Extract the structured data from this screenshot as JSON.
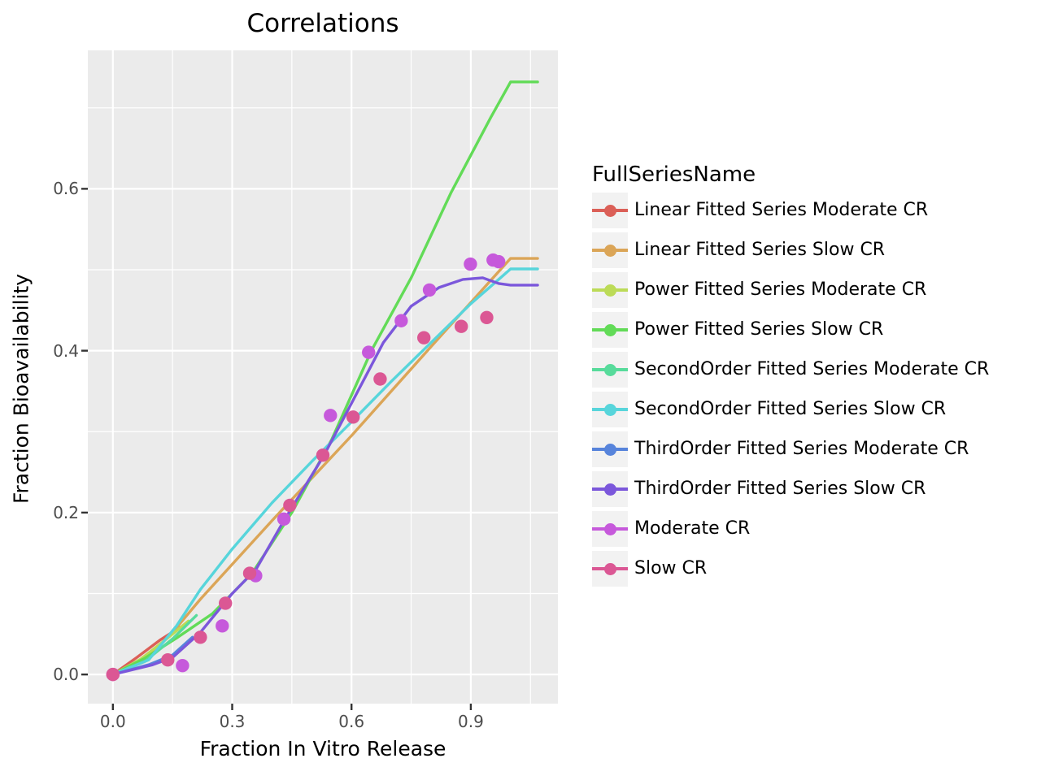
{
  "chart_data": {
    "type": "line",
    "title": "Correlations",
    "xlabel": "Fraction In Vitro Release",
    "ylabel": "Fraction Bioavailability",
    "legend_title": "FullSeriesName",
    "legend_position": "right",
    "grid": "on",
    "panel_bg": "#ebebeb",
    "grid_color": "#ffffff",
    "tick_color": "#333333",
    "tick_label_color": "#4d4d4d",
    "xlim": [
      -0.063,
      1.119
    ],
    "ylim": [
      -0.036,
      0.771
    ],
    "x_ticks": [
      0.0,
      0.3,
      0.6,
      0.9
    ],
    "x_minor_ticks": [
      0.15,
      0.45,
      0.75,
      1.05
    ],
    "y_ticks": [
      0.0,
      0.2,
      0.4,
      0.6
    ],
    "y_minor_ticks": [
      0.1,
      0.3,
      0.5,
      0.7
    ],
    "series": [
      {
        "name": "Linear Fitted Series Moderate CR",
        "color": "#db5f57",
        "type": "line",
        "points": [
          [
            0,
            0
          ],
          [
            0.06,
            0.021
          ],
          [
            0.12,
            0.043
          ],
          [
            0.168,
            0.058
          ]
        ]
      },
      {
        "name": "Linear Fitted Series Slow CR",
        "color": "#dba557",
        "type": "line",
        "points": [
          [
            0,
            0
          ],
          [
            0.08,
            0.018
          ],
          [
            0.15,
            0.052
          ],
          [
            0.22,
            0.093
          ],
          [
            0.4,
            0.19
          ],
          [
            0.6,
            0.295
          ],
          [
            0.8,
            0.405
          ],
          [
            1.0,
            0.514
          ],
          [
            1.068,
            0.514
          ]
        ]
      },
      {
        "name": "Power Fitted Series Moderate CR",
        "color": "#bcdb57",
        "type": "line",
        "points": [
          [
            0,
            0
          ],
          [
            0.07,
            0.019
          ],
          [
            0.13,
            0.042
          ],
          [
            0.19,
            0.066
          ]
        ]
      },
      {
        "name": "Power Fitted Series Slow CR",
        "color": "#62db57",
        "type": "line",
        "points": [
          [
            0,
            0
          ],
          [
            0.08,
            0.02
          ],
          [
            0.16,
            0.045
          ],
          [
            0.25,
            0.075
          ],
          [
            0.35,
            0.125
          ],
          [
            0.45,
            0.2
          ],
          [
            0.55,
            0.29
          ],
          [
            0.65,
            0.4
          ],
          [
            0.75,
            0.49
          ],
          [
            0.85,
            0.595
          ],
          [
            0.95,
            0.688
          ],
          [
            1.0,
            0.732
          ],
          [
            1.068,
            0.732
          ]
        ]
      },
      {
        "name": "SecondOrder Fitted Series Moderate CR",
        "color": "#57db9b",
        "type": "line",
        "points": [
          [
            0,
            0
          ],
          [
            0.08,
            0.016
          ],
          [
            0.15,
            0.044
          ],
          [
            0.21,
            0.073
          ]
        ]
      },
      {
        "name": "SecondOrder Fitted Series Slow CR",
        "color": "#57d5db",
        "type": "line",
        "points": [
          [
            0,
            0
          ],
          [
            0.09,
            0.018
          ],
          [
            0.16,
            0.06
          ],
          [
            0.22,
            0.105
          ],
          [
            0.3,
            0.155
          ],
          [
            0.4,
            0.212
          ],
          [
            0.5,
            0.263
          ],
          [
            0.6,
            0.312
          ],
          [
            0.7,
            0.362
          ],
          [
            0.8,
            0.41
          ],
          [
            0.9,
            0.458
          ],
          [
            0.97,
            0.488
          ],
          [
            1.0,
            0.501
          ],
          [
            1.068,
            0.501
          ]
        ]
      },
      {
        "name": "ThirdOrder Fitted Series Moderate CR",
        "color": "#5784db",
        "type": "line",
        "points": [
          [
            0,
            0
          ],
          [
            0.09,
            0.012
          ],
          [
            0.15,
            0.024
          ],
          [
            0.2,
            0.046
          ]
        ]
      },
      {
        "name": "ThirdOrder Fitted Series Slow CR",
        "color": "#7b57db",
        "type": "line",
        "points": [
          [
            0,
            0
          ],
          [
            0.1,
            0.012
          ],
          [
            0.15,
            0.021
          ],
          [
            0.22,
            0.052
          ],
          [
            0.3,
            0.1
          ],
          [
            0.36,
            0.13
          ],
          [
            0.43,
            0.19
          ],
          [
            0.53,
            0.27
          ],
          [
            0.6,
            0.335
          ],
          [
            0.68,
            0.41
          ],
          [
            0.75,
            0.455
          ],
          [
            0.82,
            0.478
          ],
          [
            0.88,
            0.488
          ],
          [
            0.93,
            0.49
          ],
          [
            0.97,
            0.483
          ],
          [
            1.0,
            0.481
          ],
          [
            1.068,
            0.481
          ]
        ]
      },
      {
        "name": "Moderate CR",
        "color": "#c659db",
        "type": "scatter",
        "points": [
          [
            0,
            0
          ],
          [
            0.175,
            0.011
          ],
          [
            0.275,
            0.06
          ],
          [
            0.359,
            0.122
          ],
          [
            0.43,
            0.192
          ],
          [
            0.547,
            0.32
          ],
          [
            0.643,
            0.398
          ],
          [
            0.725,
            0.437
          ],
          [
            0.796,
            0.475
          ],
          [
            0.899,
            0.507
          ],
          [
            0.956,
            0.512
          ],
          [
            0.97,
            0.51
          ]
        ]
      },
      {
        "name": "Slow CR",
        "color": "#db5794",
        "type": "scatter",
        "points": [
          [
            0,
            0
          ],
          [
            0.138,
            0.018
          ],
          [
            0.22,
            0.046
          ],
          [
            0.283,
            0.088
          ],
          [
            0.344,
            0.125
          ],
          [
            0.445,
            0.209
          ],
          [
            0.528,
            0.271
          ],
          [
            0.604,
            0.318
          ],
          [
            0.672,
            0.365
          ],
          [
            0.782,
            0.416
          ],
          [
            0.876,
            0.43
          ],
          [
            0.94,
            0.441
          ]
        ]
      }
    ]
  }
}
